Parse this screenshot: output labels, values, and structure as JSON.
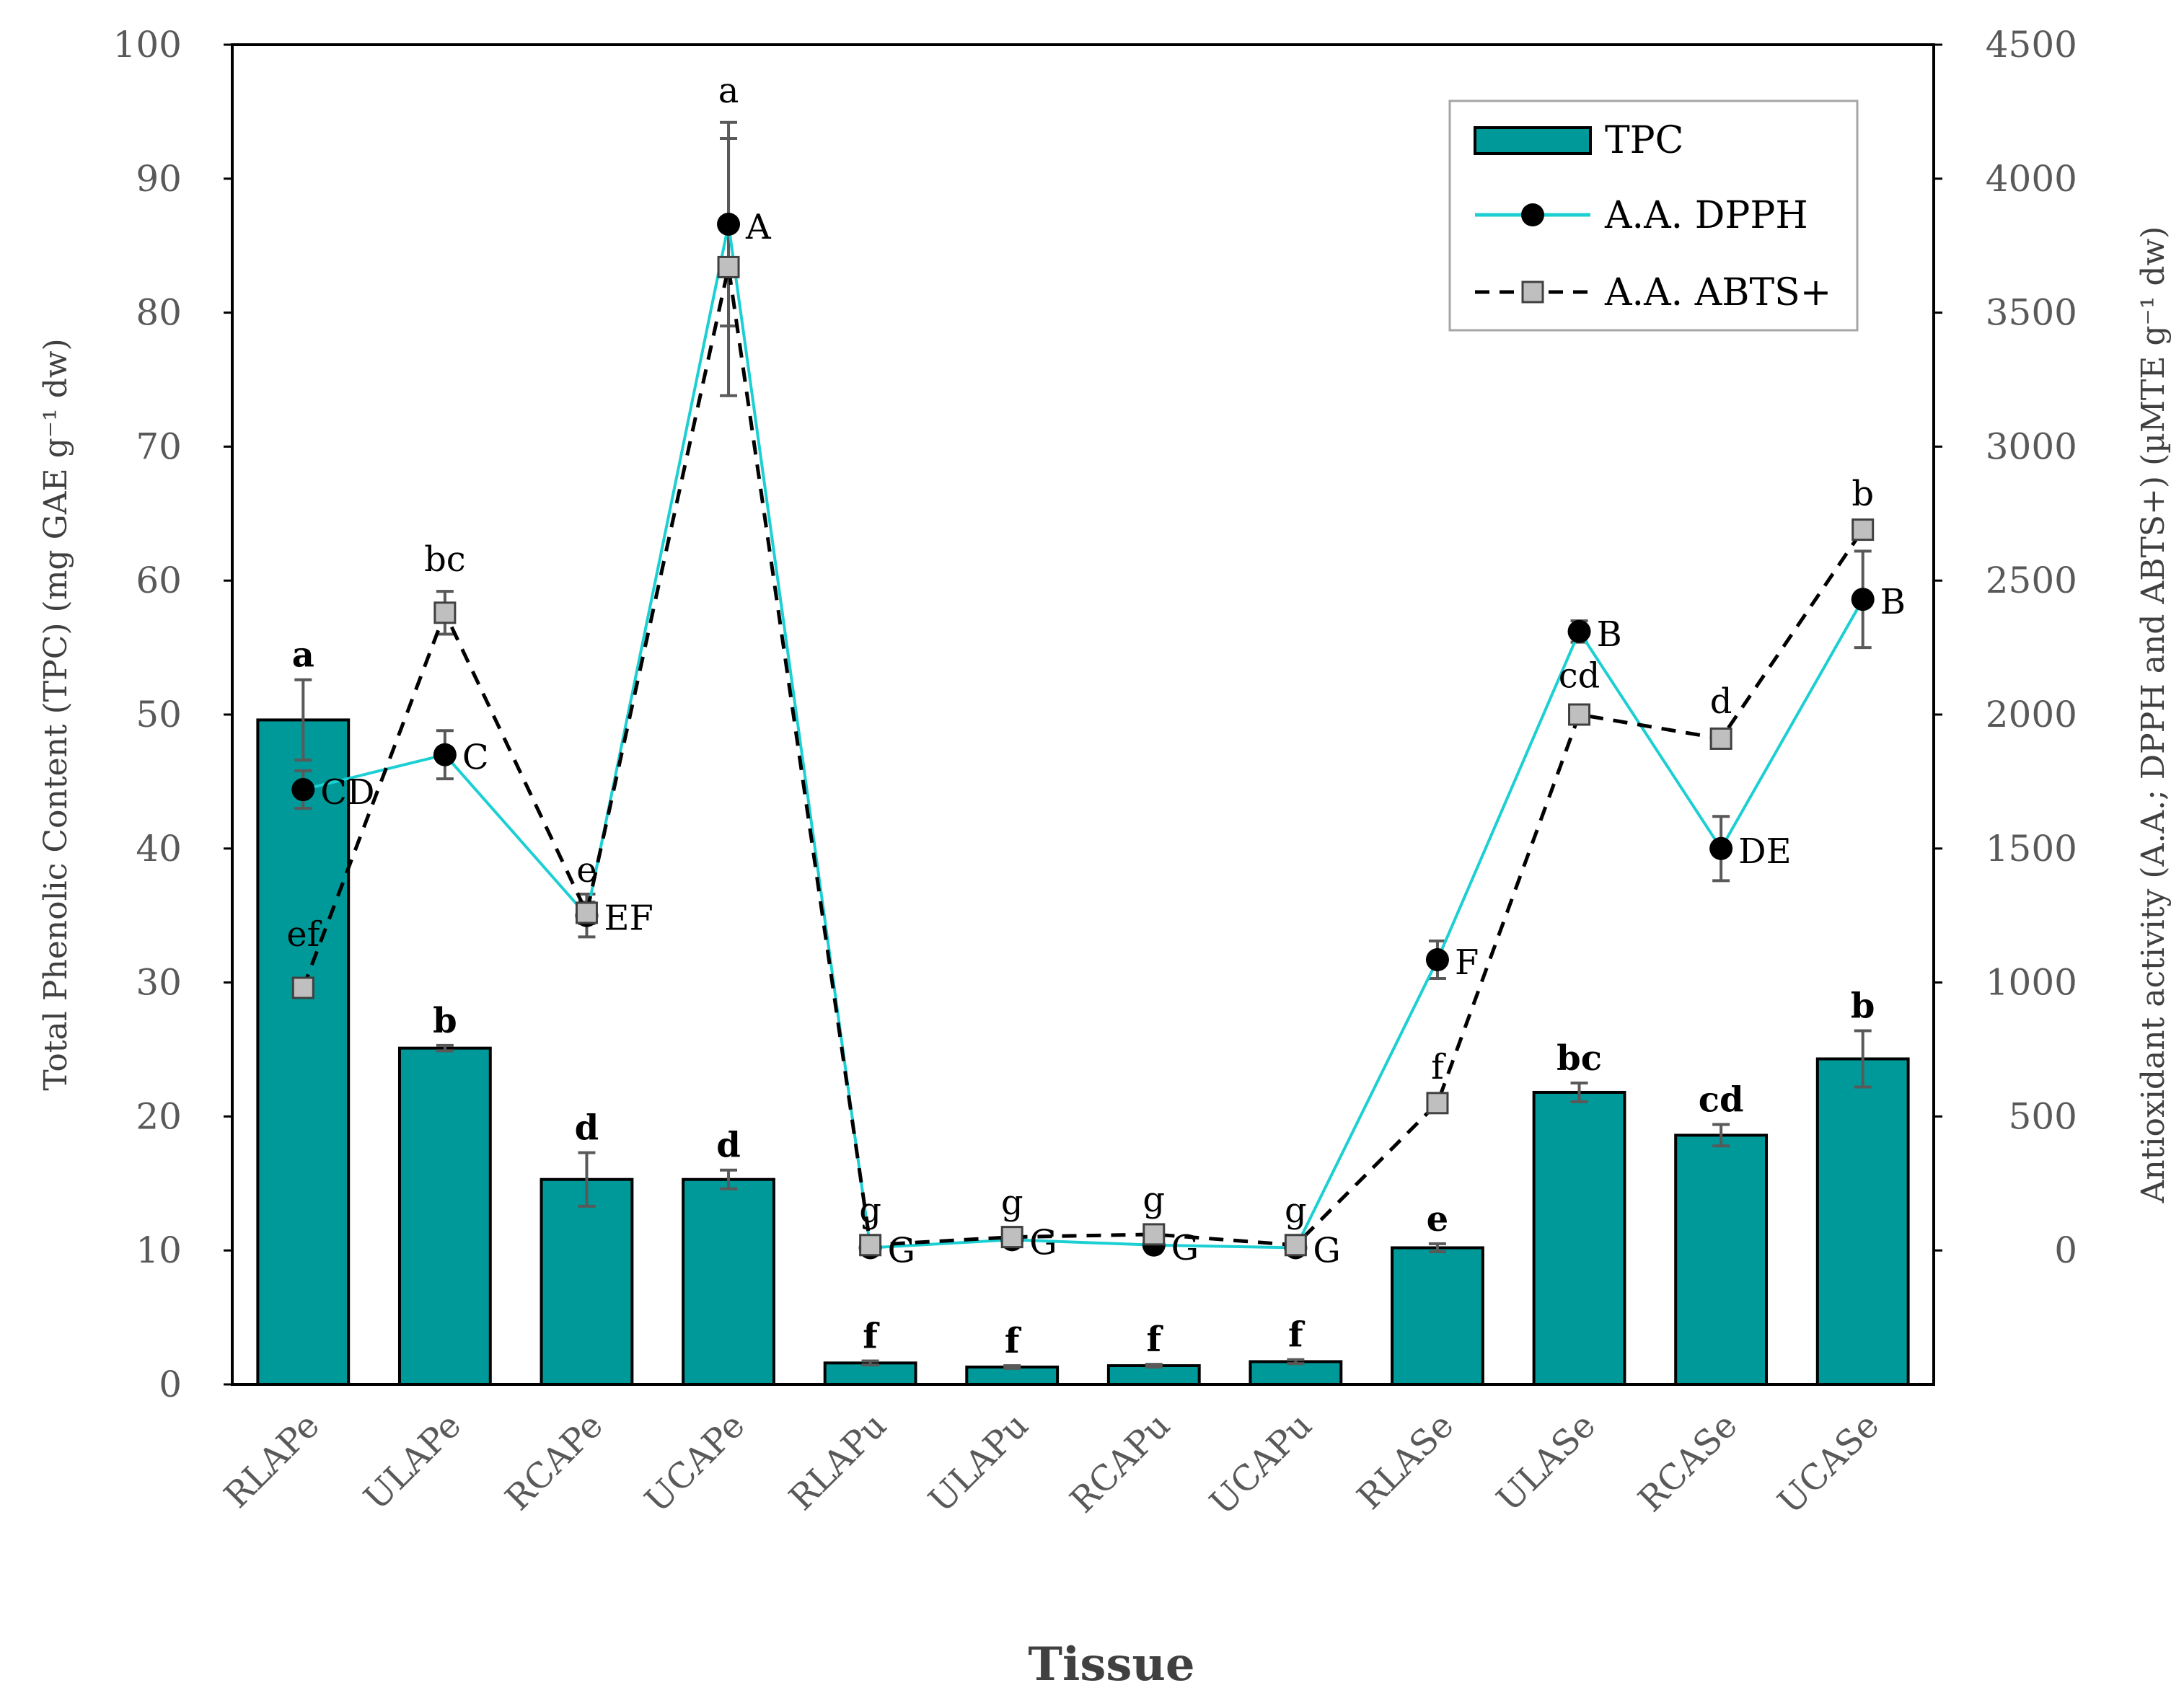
{
  "chart_data": {
    "type": "bar",
    "x_title": "Tissue",
    "y_left_label": "Total Phenolic Content (TPC) (mg GAE g⁻¹ dw)",
    "y_right_label": "Antioxidant activity (A.A.; DPPH and ABTS+) (µMTE g⁻¹ dw)",
    "y_left_range": [
      0,
      100
    ],
    "y_left_ticks": [
      "0",
      "10",
      "20",
      "30",
      "40",
      "50",
      "60",
      "70",
      "80",
      "90",
      "100"
    ],
    "y_right_range": [
      -500,
      4500
    ],
    "y_right_ticks": [
      "0",
      "500",
      "1000",
      "1500",
      "2000",
      "2500",
      "3000",
      "3500",
      "4000",
      "4500"
    ],
    "categories": [
      "RLAPe",
      "ULAPe",
      "RCAPe",
      "UCAPe",
      "RLAPu",
      "ULAPu",
      "RCAPu",
      "UCAPu",
      "RLASe",
      "ULASe",
      "RCASe",
      "UCASe"
    ],
    "legend": [
      "TPC",
      "A.A. DPPH",
      "A.A. ABTS+"
    ],
    "series": [
      {
        "name": "TPC",
        "kind": "bar",
        "axis": "left",
        "color": "#009999",
        "values": [
          49.6,
          25.1,
          15.3,
          15.3,
          1.6,
          1.3,
          1.4,
          1.7,
          10.2,
          21.8,
          18.6,
          24.3
        ],
        "errors": [
          3.0,
          0.2,
          2.0,
          0.7,
          0.15,
          0.1,
          0.1,
          0.15,
          0.3,
          0.7,
          0.8,
          2.1
        ],
        "letters": [
          "a",
          "b",
          "d",
          "d",
          "f",
          "f",
          "f",
          "f",
          "e",
          "bc",
          "cd",
          "b"
        ]
      },
      {
        "name": "A.A. DPPH",
        "kind": "line",
        "axis": "right",
        "color": "#1ccfd3",
        "values": [
          1720,
          1850,
          1250,
          3830,
          10,
          40,
          20,
          10,
          1085,
          2310,
          1500,
          2430
        ],
        "errors": [
          70,
          90,
          80,
          380,
          10,
          10,
          10,
          10,
          70,
          40,
          120,
          180
        ],
        "letters": [
          "CD",
          "C",
          "EF",
          "A",
          "G",
          "G",
          "G",
          "G",
          "F",
          "B",
          "DE",
          "B"
        ]
      },
      {
        "name": "A.A. ABTS+",
        "kind": "line",
        "axis": "right",
        "color": "#000000",
        "values": [
          980,
          2380,
          1260,
          3670,
          20,
          50,
          60,
          20,
          550,
          2000,
          1910,
          2690
        ],
        "errors": [
          15,
          80,
          40,
          480,
          10,
          10,
          10,
          10,
          15,
          25,
          20,
          15
        ],
        "letters": [
          "ef",
          "bc",
          "e",
          "a",
          "g",
          "g",
          "g",
          "g",
          "f",
          "cd",
          "d",
          "b"
        ]
      }
    ]
  }
}
